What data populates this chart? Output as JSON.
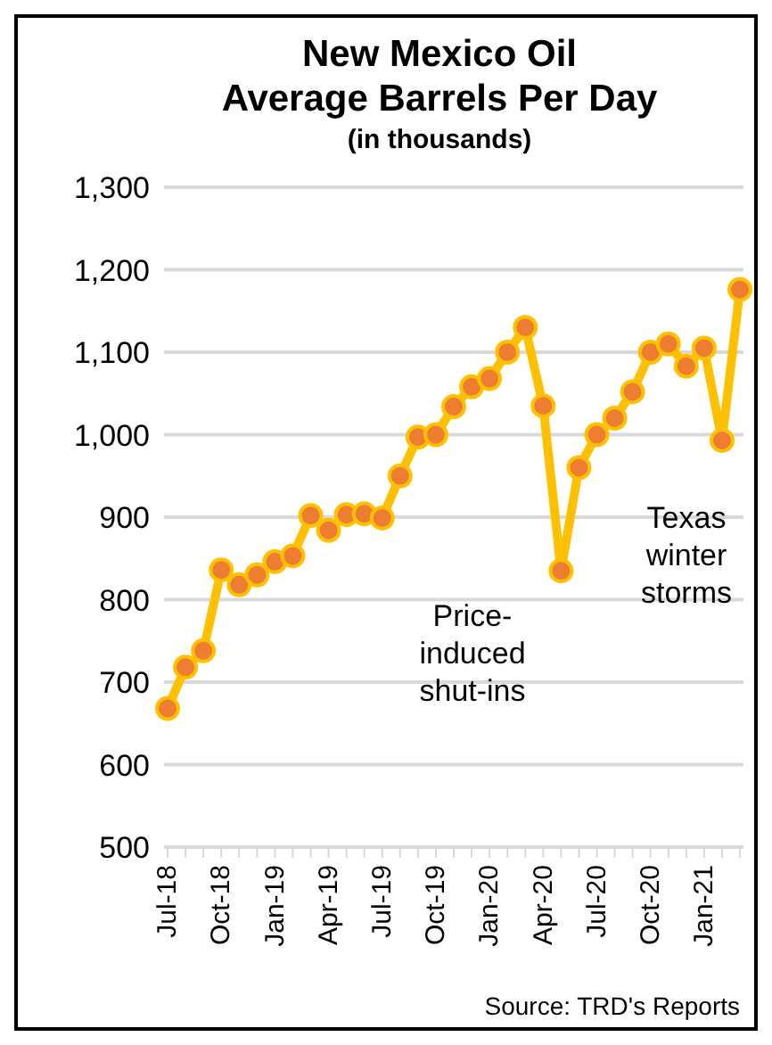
{
  "chart_data": {
    "type": "line",
    "title": "New Mexico Oil\nAverage Barrels Per Day",
    "subtitle": "(in thousands)",
    "categories": [
      "Jul-18",
      null,
      null,
      "Oct-18",
      null,
      null,
      "Jan-19",
      null,
      null,
      "Apr-19",
      null,
      null,
      "Jul-19",
      null,
      null,
      "Oct-19",
      null,
      null,
      "Jan-20",
      null,
      null,
      "Apr-20",
      null,
      null,
      "Jul-20",
      null,
      null,
      "Oct-20",
      null,
      null,
      "Jan-21",
      null,
      null
    ],
    "series": [
      {
        "color": "#ffc000",
        "values": [
          668,
          718,
          738,
          836,
          818,
          830,
          846,
          853,
          902,
          884,
          903,
          904,
          899,
          950,
          997,
          1000,
          1034,
          1058,
          1068,
          1100,
          1130,
          1035,
          835,
          960,
          1000,
          1020,
          1052,
          1100,
          1110,
          1083,
          1105,
          993,
          1176
        ]
      }
    ],
    "ylim": [
      500,
      1300
    ],
    "yticks": [
      500,
      600,
      700,
      800,
      900,
      {
        "value": 1000,
        "label": "1,000"
      },
      {
        "value": 1100,
        "label": "1,100"
      },
      {
        "value": 1200,
        "label": "1,200"
      },
      {
        "value": 1300,
        "label": "1,300"
      }
    ],
    "grid": "y",
    "marker": "circle",
    "line_style": "solid",
    "annotations": [
      "Price-\ninduced\nshut-ins",
      "Texas\nwinter\nstorms",
      "Source: TRD's Reports"
    ]
  }
}
